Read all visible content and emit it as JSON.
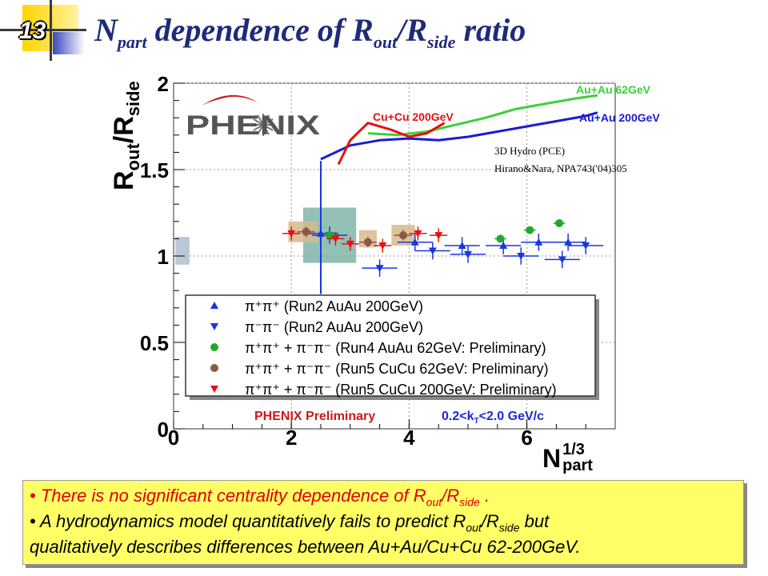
{
  "slide": {
    "number": "13"
  },
  "title": {
    "main": "N",
    "sub1": "part",
    "mid": " dependence of R",
    "sub2": "out",
    "slash": "/R",
    "sub3": "side",
    "tail": " ratio"
  },
  "logo": "PHENIX",
  "chart_data": {
    "type": "scatter",
    "xlabel_main": "N",
    "xlabel_sup": "1/3",
    "xlabel_sub": "part",
    "ylabel_main": "R",
    "ylabel_sub1": "out",
    "ylabel_slash": "/R",
    "ylabel_sub2": "side",
    "xlim": [
      0,
      7.5
    ],
    "ylim": [
      0,
      2
    ],
    "xticks": [
      0,
      2,
      4,
      6
    ],
    "xtick_labels": [
      "0",
      "2",
      "4",
      "6"
    ],
    "yticks": [
      0,
      0.5,
      1,
      1.5,
      2
    ],
    "ytick_labels": [
      "0",
      "0.5",
      "1",
      "1.5",
      "2"
    ],
    "grid": true,
    "legend_position": "bottom-left",
    "series": [
      {
        "name": "π⁺π⁺ (Run2 AuAu 200GeV)",
        "marker": "triangle-up",
        "color": "#1a36e0",
        "x": [
          2.5,
          4.1,
          4.9,
          5.6,
          6.2,
          6.7
        ],
        "y": [
          1.13,
          1.08,
          1.06,
          1.06,
          1.08,
          1.08
        ],
        "ex": 0.3,
        "ey": 0.05
      },
      {
        "name": "π⁻π⁻ (Run2 AuAu 200GeV)",
        "marker": "triangle-down",
        "color": "#1a36e0",
        "x": [
          2.65,
          3.5,
          4.4,
          5.0,
          5.9,
          6.6,
          7.0
        ],
        "y": [
          1.12,
          0.93,
          1.03,
          1.01,
          1.0,
          0.98,
          1.06
        ],
        "ex": 0.3,
        "ey": 0.05
      },
      {
        "name": "π⁺π⁺ + π⁻π⁻ (Run4 AuAu 62GeV: Preliminary)",
        "marker": "circle",
        "color": "#1faa2a",
        "x": [
          2.65,
          5.55,
          6.05,
          6.55
        ],
        "y": [
          1.12,
          1.1,
          1.15,
          1.19
        ],
        "ex": 0.1,
        "ey": 0.02
      },
      {
        "name": "π⁺π⁺ + π⁻π⁻ (Run5 CuCu 62GeV: Preliminary)",
        "marker": "circle",
        "color": "#8a5a44",
        "x": [
          2.25,
          3.3,
          3.9
        ],
        "y": [
          1.14,
          1.08,
          1.12
        ],
        "ex": 0.15,
        "ey": 0.03
      },
      {
        "name": "π⁺π⁺ + π⁻π⁻ (Run5 CuCu 200GeV: Preliminary)",
        "marker": "triangle-down",
        "color": "#e81010",
        "x": [
          2.0,
          2.75,
          3.0,
          3.55,
          4.15,
          4.5
        ],
        "y": [
          1.13,
          1.1,
          1.07,
          1.06,
          1.13,
          1.12
        ],
        "ex": 0.15,
        "ey": 0.04
      }
    ],
    "systematic_boxes": [
      {
        "x": 2.65,
        "y": 1.12,
        "dx": 0.45,
        "dy": 0.16,
        "color": "#7fb5a8"
      },
      {
        "x": 2.2,
        "y": 1.14,
        "dx": 0.25,
        "dy": 0.06,
        "color": "#d8b98a"
      },
      {
        "x": 3.3,
        "y": 1.1,
        "dx": 0.15,
        "dy": 0.05,
        "color": "#d8b98a"
      },
      {
        "x": 3.9,
        "y": 1.12,
        "dx": 0.2,
        "dy": 0.06,
        "color": "#d8b98a"
      },
      {
        "x": 0.15,
        "y": 1.03,
        "dx": 0.12,
        "dy": 0.08,
        "color": "#aebdcc"
      }
    ],
    "model_curves": [
      {
        "name": "Au+Au 62GeV",
        "color": "#3ad13a",
        "x": [
          3.3,
          3.8,
          4.3,
          4.8,
          5.3,
          5.8,
          6.3,
          6.8,
          7.2
        ],
        "y": [
          1.71,
          1.7,
          1.72,
          1.76,
          1.8,
          1.85,
          1.88,
          1.91,
          1.93
        ]
      },
      {
        "name": "Au+Au 200GeV",
        "color": "#1a1ad8",
        "x": [
          2.5,
          3.0,
          3.5,
          4.0,
          4.5,
          5.0,
          5.5,
          6.0,
          6.5,
          7.0,
          7.2
        ],
        "y": [
          1.56,
          1.64,
          1.67,
          1.68,
          1.67,
          1.69,
          1.72,
          1.75,
          1.78,
          1.81,
          1.83
        ]
      },
      {
        "name": "Cu+Cu 200GeV",
        "color": "#e81010",
        "x": [
          2.8,
          3.0,
          3.3,
          3.7,
          4.0,
          4.3,
          4.6
        ],
        "y": [
          1.53,
          1.67,
          1.77,
          1.73,
          1.69,
          1.71,
          1.77
        ]
      }
    ],
    "annotations": [
      "3D Hydro (PCE)",
      "Hirano&Nara, NPA743('04)305",
      "PHENIX Preliminary",
      "0.2<k",
      "T",
      "<2.0 GeV/c"
    ]
  },
  "bullets": [
    {
      "pre": "There is no significant centrality dependence of R",
      "s1": "out",
      "m": "/R",
      "s2": "side",
      "post": " ."
    },
    {
      "pre": "A hydrodynamics model quantitatively fails to predict R",
      "s1": "out",
      "m": "/R",
      "s2": "side",
      "post": " but"
    },
    {
      "text": "qualitatively describes differences between Au+Au/Cu+Cu 62-200GeV."
    }
  ],
  "colors": {
    "title": "#1f2a7a",
    "bullet_bg": "#ffff66",
    "bullet_red": "#e00000",
    "phenix_red": "#cc1a1a"
  }
}
